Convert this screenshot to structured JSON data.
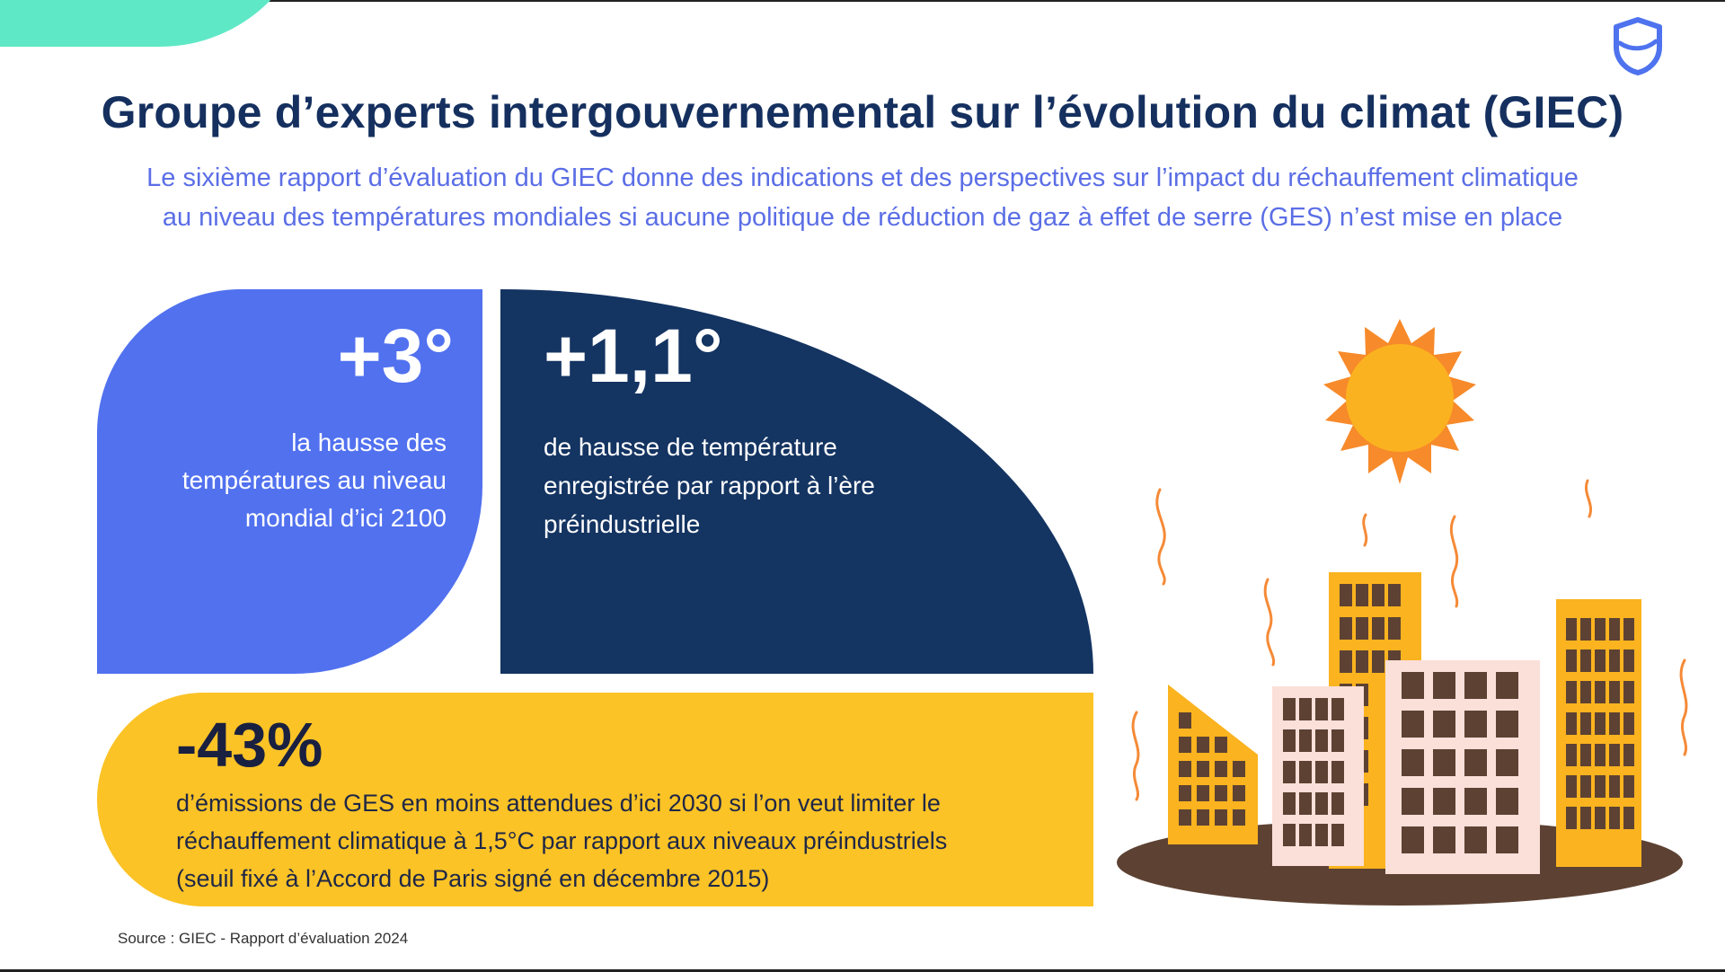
{
  "header": {
    "title": "Groupe d’experts intergouvernemental sur l’évolution du climat (GIEC)",
    "subtitle_line1": "Le sixième rapport d’évaluation du GIEC donne des indications et des perspectives sur l’impact du réchauffement climatique",
    "subtitle_line2": "au niveau des températures mondiales si aucune politique de réduction de gaz à effet de serre (GES) n’est mise en place"
  },
  "stats": {
    "global_rise": {
      "value": "+3°",
      "line1": "la hausse des",
      "line2": "températures au niveau",
      "line3": "mondial d’ici 2100",
      "color": "#5171ef"
    },
    "recorded_rise": {
      "value": "+1,1°",
      "line1": "de hausse de température",
      "line2": "enregistrée par rapport à l’ère",
      "line3": "préindustrielle",
      "color": "#143462"
    },
    "emissions_cut": {
      "value": "-43%",
      "line1": "d’émissions de GES en moins attendues d’ici 2030 si l’on veut limiter le",
      "line2": "réchauffement climatique à 1,5°C par rapport aux niveaux préindustriels",
      "line3": "(seuil fixé à l’Accord de Paris signé en décembre 2015)",
      "color": "#fbc326"
    }
  },
  "footer": {
    "source": "Source : GIEC - Rapport d’évaluation 2024"
  },
  "icons": {
    "logo": "shield-logo-icon",
    "illustration": "hot-city-sun-illustration"
  },
  "colors": {
    "title": "#15305f",
    "subtitle": "#5b6ee6",
    "accent_teal": "#5fe8c6"
  }
}
